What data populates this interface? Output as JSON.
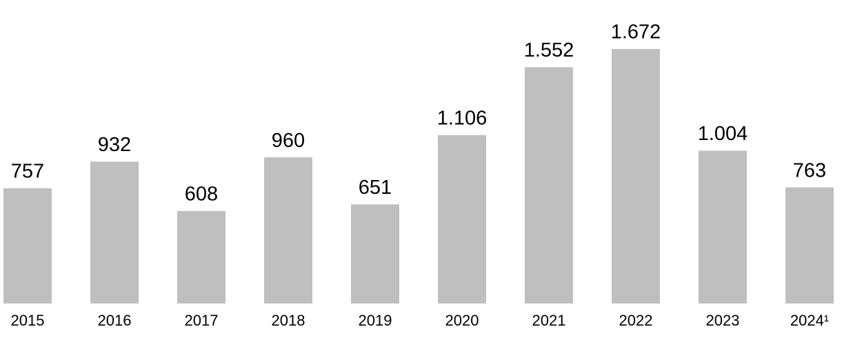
{
  "chart_data": {
    "type": "bar",
    "categories": [
      "2015",
      "2016",
      "2017",
      "2018",
      "2019",
      "2020",
      "2021",
      "2022",
      "2023",
      "2024¹"
    ],
    "values": [
      757,
      932,
      608,
      960,
      651,
      1106,
      1552,
      1672,
      1004,
      763
    ],
    "value_labels": [
      "757",
      "932",
      "608",
      "960",
      "651",
      "1.106",
      "1.552",
      "1.672",
      "1.004",
      "763"
    ],
    "color": "#bfbfbf"
  }
}
